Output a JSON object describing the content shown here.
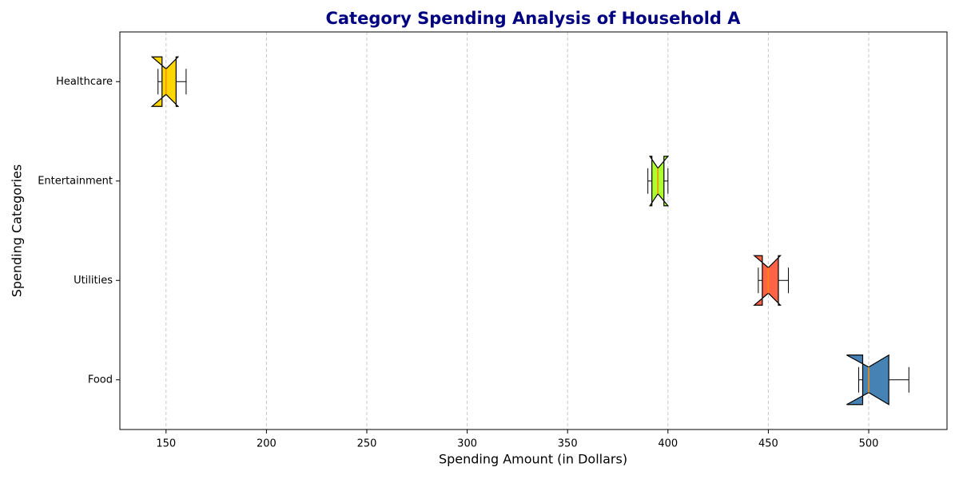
{
  "chart_data": {
    "type": "boxplot",
    "orientation": "horizontal",
    "notch": true,
    "title": "Category Spending Analysis of Household A",
    "x_label": "Spending Amount (in Dollars)",
    "y_label": "Spending Categories",
    "categories": [
      "Food",
      "Utilities",
      "Entertainment",
      "Healthcare"
    ],
    "boxes": [
      {
        "whislo": 495,
        "q1": 497,
        "notch_lo": 489,
        "med": 500,
        "notch_hi": 510,
        "q3": 510,
        "whishi": 520,
        "color": "#4682b4"
      },
      {
        "whislo": 445,
        "q1": 447,
        "notch_lo": 443,
        "med": 450,
        "notch_hi": 456,
        "q3": 455,
        "whishi": 460,
        "color": "#ff6347"
      },
      {
        "whislo": 390,
        "q1": 392,
        "notch_lo": 391,
        "med": 395,
        "notch_hi": 400,
        "q3": 398,
        "whishi": 400,
        "color": "#adff2f"
      },
      {
        "whislo": 146,
        "q1": 148,
        "notch_lo": 143,
        "med": 150,
        "notch_hi": 156,
        "q3": 155,
        "whishi": 160,
        "color": "#ffd700"
      }
    ],
    "median_color": "#ff8c00",
    "xlim": [
      127,
      539
    ],
    "xticks": [
      150,
      200,
      250,
      300,
      350,
      400,
      450,
      500
    ],
    "grid": true
  }
}
